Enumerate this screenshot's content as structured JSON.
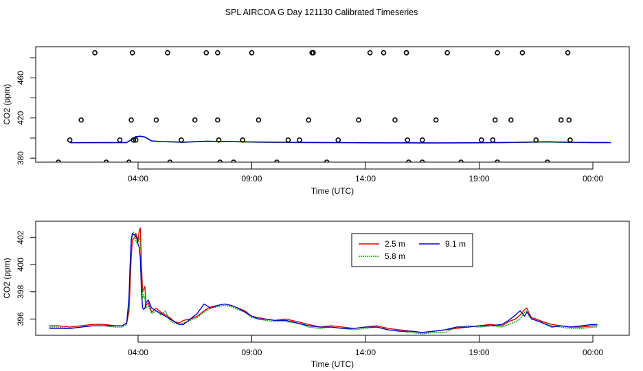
{
  "page_title": "SPL AIRCOA G  Day 121130  Calibrated Timeseries",
  "colors": {
    "red": "#dd0000",
    "green": "#00aa00",
    "blue": "#0000cc",
    "axis": "#000000"
  },
  "chart_data": [
    {
      "id": "top",
      "type": "scatter+line",
      "xlabel": "Time (UTC)",
      "ylabel": "CO2 (ppm)",
      "xlim": [
        -1.5,
        24.6
      ],
      "ylim": [
        376,
        491
      ],
      "xticks": [
        {
          "v": 3.0,
          "label": "04:00"
        },
        {
          "v": 8.0,
          "label": "09:00"
        },
        {
          "v": 13.0,
          "label": "14:00"
        },
        {
          "v": 18.0,
          "label": "19:00"
        },
        {
          "v": 23.0,
          "label": "00:00"
        }
      ],
      "yticks": [
        {
          "v": 380,
          "label": "380"
        },
        {
          "v": 400,
          "label": ""
        },
        {
          "v": 420,
          "label": "420"
        },
        {
          "v": 440,
          "label": ""
        },
        {
          "v": 460,
          "label": "460"
        },
        {
          "v": 480,
          "label": ""
        }
      ],
      "points_x": [
        -0.5,
        0.0,
        0.5,
        1.1,
        1.6,
        2.2,
        2.6,
        2.7,
        2.75,
        2.8,
        2.9,
        3.8,
        4.3,
        4.4,
        4.9,
        5.5,
        6.0,
        6.5,
        6.5,
        6.55,
        6.6,
        7.2,
        7.6,
        8.0,
        8.3,
        9.1,
        9.6,
        10.1,
        10.5,
        10.65,
        10.7,
        10.7,
        11.3,
        11.8,
        12.7,
        13.2,
        13.8,
        14.3,
        14.8,
        14.8,
        14.85,
        14.9,
        15.5,
        15.5,
        16.1,
        16.6,
        17.2,
        18.1,
        18.6,
        18.7,
        18.8,
        18.8,
        19.4,
        19.9,
        20.5,
        21.0,
        21.6,
        21.9,
        21.95,
        22.0
      ],
      "points_y": [
        376,
        398,
        418,
        485,
        376,
        398,
        376,
        418,
        485,
        398,
        398,
        418,
        485,
        376,
        398,
        418,
        485,
        485,
        418,
        398,
        376,
        376,
        398,
        485,
        418,
        376,
        398,
        398,
        418,
        485,
        485,
        485,
        376,
        398,
        418,
        485,
        485,
        418,
        485,
        485,
        398,
        376,
        376,
        398,
        418,
        485,
        376,
        398,
        398,
        418,
        485,
        376,
        418,
        485,
        398,
        376,
        418,
        485,
        418,
        398
      ],
      "series": [
        {
          "name": "2.5 m",
          "color": "#dd0000",
          "x": [
            0.0,
            2.5,
            2.9,
            3.1,
            3.3,
            3.6,
            4.0,
            5.0,
            6.0,
            7.0,
            8.0,
            9.0,
            10.0,
            11.0,
            12.0,
            13.0,
            14.0,
            15.0,
            16.0,
            17.0,
            18.0,
            19.0,
            20.0,
            21.0,
            22.0,
            23.0,
            23.8
          ],
          "y": [
            395.5,
            395.6,
            401,
            402,
            401,
            397,
            396.5,
            395.8,
            396.8,
            396.5,
            396,
            395.8,
            395.6,
            395.5,
            395.4,
            395.3,
            395.2,
            395.2,
            395.1,
            395.2,
            395.3,
            395.5,
            395.8,
            396.2,
            395.7,
            395.5,
            395.5
          ]
        },
        {
          "name": "5.8 m",
          "color": "#00aa00",
          "x": [
            0.0,
            2.5,
            2.9,
            3.1,
            3.3,
            3.6,
            4.0,
            5.0,
            6.0,
            7.0,
            8.0,
            9.0,
            10.0,
            11.0,
            12.0,
            13.0,
            14.0,
            15.0,
            16.0,
            17.0,
            18.0,
            19.0,
            20.0,
            21.0,
            22.0,
            23.0,
            23.8
          ],
          "y": [
            395.4,
            395.5,
            400.5,
            401.7,
            400.8,
            397,
            396.4,
            395.7,
            396.7,
            396.4,
            395.9,
            395.7,
            395.5,
            395.4,
            395.3,
            395.2,
            395.1,
            395.1,
            395.0,
            395.1,
            395.2,
            395.4,
            395.7,
            396.0,
            395.6,
            395.4,
            395.4
          ]
        },
        {
          "name": "9.1 m",
          "color": "#0000cc",
          "x": [
            0.0,
            2.5,
            2.9,
            3.1,
            3.3,
            3.6,
            4.0,
            5.0,
            6.0,
            7.0,
            8.0,
            9.0,
            10.0,
            11.0,
            12.0,
            13.0,
            14.0,
            15.0,
            16.0,
            17.0,
            18.0,
            19.0,
            20.0,
            21.0,
            22.0,
            23.0,
            23.8
          ],
          "y": [
            395.3,
            395.5,
            401.5,
            401.8,
            401.2,
            397.2,
            396.6,
            395.9,
            396.9,
            396.6,
            396.1,
            395.9,
            395.7,
            395.6,
            395.5,
            395.4,
            395.3,
            395.3,
            395.2,
            395.3,
            395.4,
            395.6,
            395.9,
            396.3,
            395.8,
            395.6,
            395.6
          ]
        }
      ]
    },
    {
      "id": "bottom",
      "type": "line",
      "xlabel": "Time (UTC)",
      "ylabel": "CO2 (ppm)",
      "xlim": [
        -1.5,
        24.6
      ],
      "ylim": [
        394.8,
        403.2
      ],
      "xticks": [
        {
          "v": 3.0,
          "label": "04:00"
        },
        {
          "v": 8.0,
          "label": "09:00"
        },
        {
          "v": 13.0,
          "label": "14:00"
        },
        {
          "v": 18.0,
          "label": "19:00"
        },
        {
          "v": 23.0,
          "label": "00:00"
        }
      ],
      "yticks": [
        {
          "v": 396,
          "label": "396"
        },
        {
          "v": 398,
          "label": "398"
        },
        {
          "v": 400,
          "label": "400"
        },
        {
          "v": 402,
          "label": "402"
        }
      ],
      "legend": {
        "placement": "top-center",
        "entries": [
          {
            "label": "2.5 m",
            "color": "#dd0000"
          },
          {
            "label": "9.1 m",
            "color": "#0000cc"
          },
          {
            "label": "5.8 m",
            "color": "#00aa00"
          }
        ]
      },
      "series": [
        {
          "name": "2.5 m",
          "color": "#dd0000",
          "x": [
            -0.9,
            -0.5,
            0.0,
            0.5,
            1.0,
            1.5,
            2.0,
            2.3,
            2.5,
            2.6,
            2.65,
            2.7,
            2.75,
            2.8,
            2.85,
            2.9,
            2.95,
            3.0,
            3.05,
            3.1,
            3.15,
            3.2,
            3.25,
            3.3,
            3.35,
            3.45,
            3.6,
            3.8,
            4.0,
            4.2,
            4.4,
            4.6,
            4.8,
            5.0,
            5.3,
            5.6,
            5.9,
            6.2,
            6.5,
            6.8,
            7.1,
            7.4,
            7.7,
            8.0,
            8.3,
            8.6,
            9.0,
            9.5,
            10.0,
            10.5,
            11.0,
            11.5,
            12.0,
            12.5,
            13.0,
            13.5,
            14.0,
            14.5,
            15.0,
            15.5,
            16.0,
            16.5,
            17.0,
            17.5,
            18.0,
            18.5,
            19.0,
            19.3,
            19.6,
            19.8,
            20.0,
            20.1,
            20.2,
            20.3,
            20.5,
            20.8,
            21.2,
            21.6,
            22.0,
            22.5,
            23.0,
            23.2
          ],
          "y": [
            395.5,
            395.5,
            395.4,
            395.5,
            395.6,
            395.6,
            395.5,
            395.5,
            395.7,
            396.5,
            398.5,
            400.5,
            401.8,
            401.9,
            402.0,
            402.3,
            402.1,
            401.7,
            402.5,
            402.7,
            400.0,
            398.0,
            398.2,
            398.4,
            397.0,
            397.2,
            396.5,
            396.8,
            396.5,
            396.3,
            396.1,
            395.8,
            395.7,
            395.9,
            396.0,
            396.2,
            396.6,
            396.9,
            397.0,
            397.1,
            397.0,
            396.8,
            396.6,
            396.2,
            396.1,
            396.0,
            395.9,
            396.0,
            395.8,
            395.6,
            395.4,
            395.5,
            395.4,
            395.3,
            395.4,
            395.5,
            395.3,
            395.2,
            395.1,
            395.0,
            395.1,
            395.2,
            395.3,
            395.4,
            395.5,
            395.6,
            395.5,
            395.8,
            396.0,
            396.3,
            396.7,
            396.8,
            396.4,
            396.1,
            396.0,
            395.8,
            395.6,
            395.5,
            395.4,
            395.4,
            395.5,
            395.5
          ]
        },
        {
          "name": "5.8 m",
          "color": "#00aa00",
          "x": [
            -0.9,
            -0.5,
            0.0,
            0.5,
            1.0,
            1.5,
            2.0,
            2.3,
            2.5,
            2.6,
            2.65,
            2.7,
            2.75,
            2.8,
            2.85,
            2.9,
            2.95,
            3.0,
            3.05,
            3.1,
            3.15,
            3.2,
            3.25,
            3.3,
            3.35,
            3.45,
            3.6,
            3.8,
            4.0,
            4.2,
            4.4,
            4.6,
            4.8,
            5.0,
            5.3,
            5.6,
            5.9,
            6.2,
            6.5,
            6.8,
            7.1,
            7.4,
            7.7,
            8.0,
            8.3,
            8.6,
            9.0,
            9.5,
            10.0,
            10.5,
            11.0,
            11.5,
            12.0,
            12.5,
            13.0,
            13.5,
            14.0,
            14.5,
            15.0,
            15.5,
            16.0,
            16.5,
            17.0,
            17.5,
            18.0,
            18.5,
            19.0,
            19.3,
            19.6,
            19.8,
            20.0,
            20.1,
            20.2,
            20.3,
            20.5,
            20.8,
            21.2,
            21.6,
            22.0,
            22.5,
            23.0,
            23.2
          ],
          "y": [
            395.4,
            395.4,
            395.3,
            395.4,
            395.5,
            395.5,
            395.4,
            395.4,
            395.6,
            397.0,
            399.5,
            401.5,
            402.3,
            402.4,
            402.2,
            401.8,
            401.6,
            401.8,
            402.0,
            401.5,
            399.0,
            397.5,
            397.8,
            397.5,
            396.8,
            397.0,
            396.4,
            396.6,
            396.3,
            396.6,
            395.9,
            395.7,
            395.6,
            395.7,
            395.9,
            396.1,
            396.5,
            396.8,
            396.9,
            397.0,
            396.9,
            396.7,
            396.5,
            396.1,
            396.0,
            395.9,
            395.8,
            395.8,
            395.7,
            395.4,
            395.3,
            395.4,
            395.3,
            395.2,
            395.3,
            395.4,
            395.2,
            395.1,
            395.0,
            394.9,
            395.0,
            395.0,
            395.4,
            395.5,
            395.4,
            395.5,
            395.4,
            395.6,
            395.8,
            396.0,
            396.5,
            396.6,
            396.2,
            396.0,
            395.9,
            395.7,
            395.5,
            395.4,
            395.3,
            395.3,
            395.4,
            395.4
          ]
        },
        {
          "name": "9.1 m",
          "color": "#0000cc",
          "x": [
            -0.9,
            -0.5,
            0.0,
            0.5,
            1.0,
            1.5,
            2.0,
            2.3,
            2.5,
            2.6,
            2.65,
            2.7,
            2.75,
            2.8,
            2.85,
            2.9,
            2.95,
            3.0,
            3.05,
            3.1,
            3.15,
            3.2,
            3.25,
            3.3,
            3.35,
            3.45,
            3.6,
            3.8,
            4.0,
            4.2,
            4.4,
            4.6,
            4.8,
            5.0,
            5.3,
            5.6,
            5.9,
            6.2,
            6.5,
            6.8,
            7.1,
            7.4,
            7.7,
            8.0,
            8.3,
            8.6,
            9.0,
            9.5,
            10.0,
            10.5,
            11.0,
            11.5,
            12.0,
            12.5,
            13.0,
            13.5,
            14.0,
            14.5,
            15.0,
            15.5,
            16.0,
            16.5,
            17.0,
            17.5,
            18.0,
            18.5,
            19.0,
            19.3,
            19.6,
            19.8,
            20.0,
            20.1,
            20.2,
            20.3,
            20.5,
            20.8,
            21.2,
            21.6,
            22.0,
            22.5,
            23.0,
            23.2
          ],
          "y": [
            395.3,
            395.3,
            395.3,
            395.4,
            395.5,
            395.5,
            395.5,
            395.5,
            395.7,
            397.5,
            400.0,
            401.8,
            402.3,
            402.2,
            402.2,
            402.1,
            401.9,
            401.5,
            401.3,
            400.5,
            398.0,
            396.8,
            396.7,
            396.8,
            397.2,
            397.4,
            396.8,
            396.6,
            396.4,
            396.2,
            396.0,
            395.8,
            395.6,
            395.6,
            396.0,
            396.4,
            397.1,
            396.8,
            397.0,
            397.1,
            397.0,
            396.8,
            396.5,
            396.2,
            396.0,
            396.0,
            395.9,
            395.9,
            395.7,
            395.5,
            395.4,
            395.4,
            395.3,
            395.3,
            395.4,
            395.4,
            395.2,
            395.1,
            395.1,
            395.0,
            395.1,
            395.2,
            395.4,
            395.4,
            395.5,
            395.5,
            395.6,
            395.9,
            396.3,
            396.6,
            396.2,
            396.5,
            396.3,
            396.0,
            395.9,
            395.7,
            395.4,
            395.5,
            395.4,
            395.5,
            395.6,
            395.6
          ]
        }
      ]
    }
  ]
}
